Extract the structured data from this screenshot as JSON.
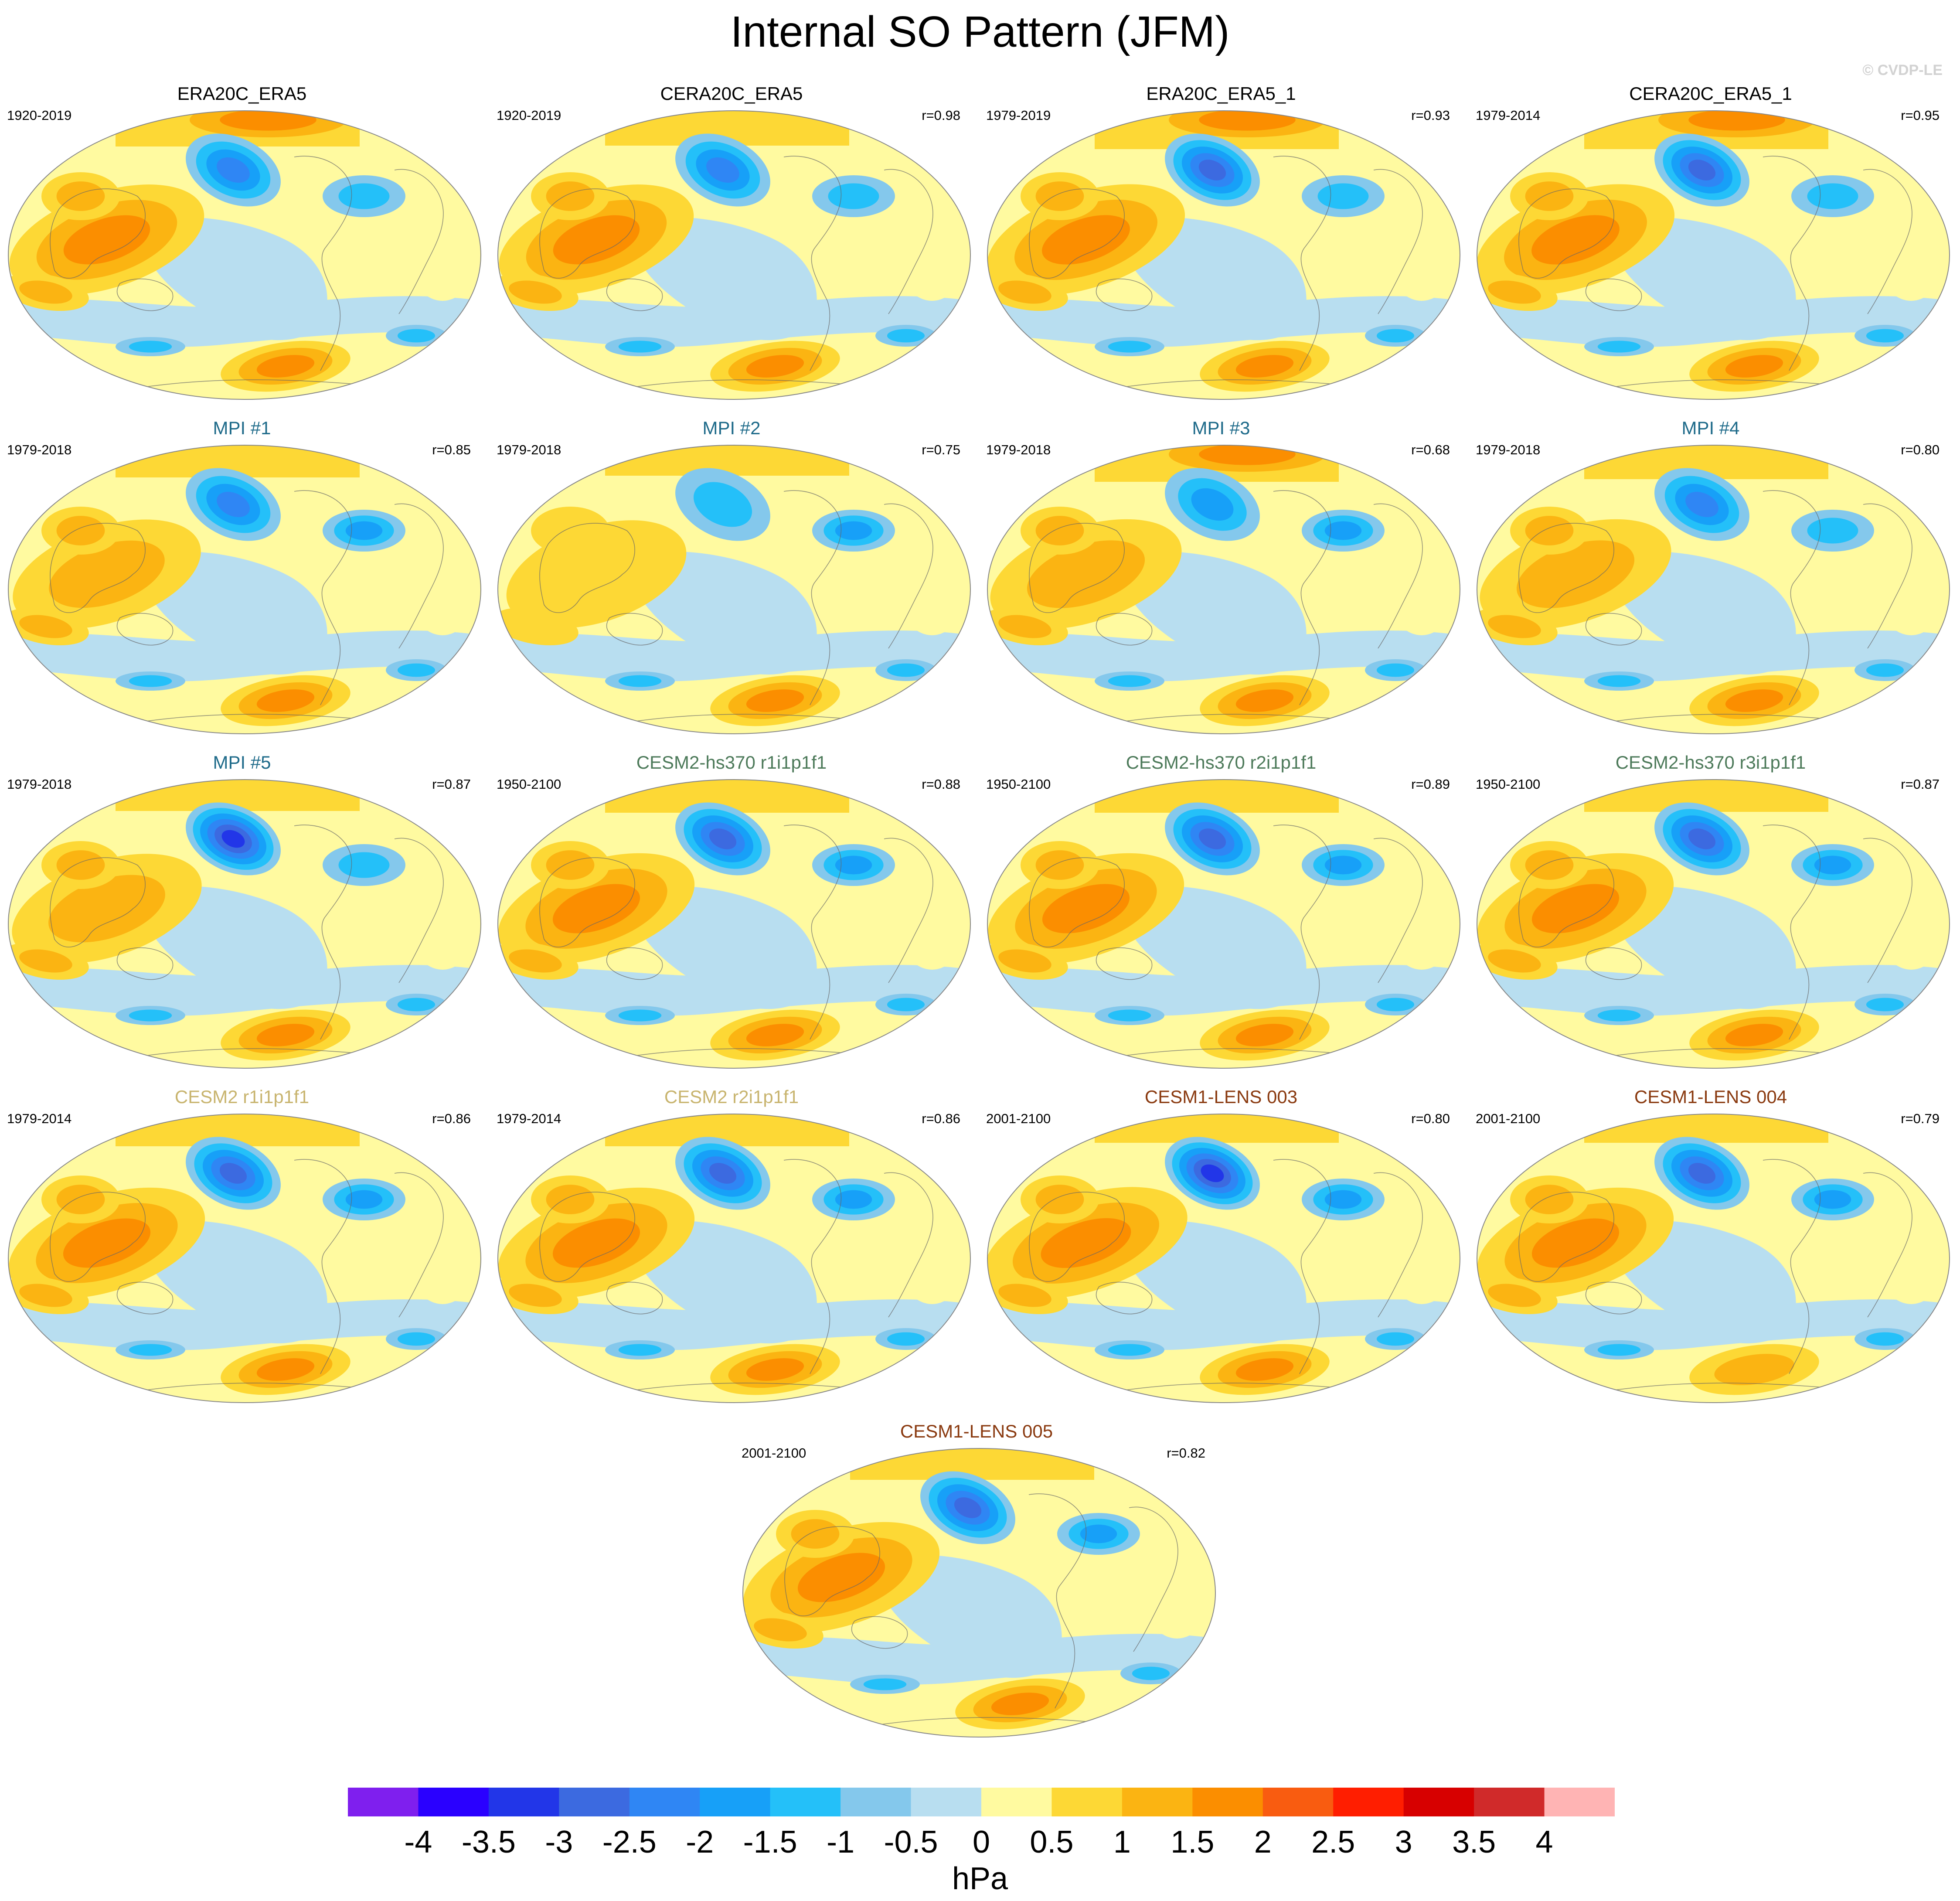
{
  "title": "Internal SO Pattern (JFM)",
  "credit": "© CVDP-LE",
  "panels": [
    {
      "title": "ERA20C_ERA5",
      "period": "1920-2019",
      "r": "",
      "title_color": "#000000",
      "pattern": [
        0.3,
        0.2,
        0.55,
        0.3,
        0.65
      ]
    },
    {
      "title": "CERA20C_ERA5",
      "period": "1920-2019",
      "r": "r=0.98",
      "title_color": "#000000",
      "pattern": [
        0.3,
        0.2,
        0.55,
        0.25,
        0.6
      ]
    },
    {
      "title": "ERA20C_ERA5_1",
      "period": "1979-2019",
      "r": "r=0.93",
      "title_color": "#000000",
      "pattern": [
        0.45,
        0.2,
        0.65,
        0.35,
        0.8
      ]
    },
    {
      "title": "CERA20C_ERA5_1",
      "period": "1979-2014",
      "r": "r=0.95",
      "title_color": "#000000",
      "pattern": [
        0.45,
        0.2,
        0.65,
        0.35,
        0.8
      ]
    },
    {
      "title": "MPI #1",
      "period": "1979-2018",
      "r": "r=0.85",
      "title_color": "#1f6b8a",
      "pattern": [
        0.4,
        0.55,
        0.35,
        0.4,
        0.45
      ]
    },
    {
      "title": "MPI #2",
      "period": "1979-2018",
      "r": "r=0.75",
      "title_color": "#1f6b8a",
      "pattern": [
        0.05,
        0.55,
        0.1,
        0.4,
        0.35
      ]
    },
    {
      "title": "MPI #3",
      "period": "1979-2018",
      "r": "r=0.68",
      "title_color": "#1f6b8a",
      "pattern": [
        0.2,
        0.6,
        0.45,
        0.4,
        0.7
      ]
    },
    {
      "title": "MPI #4",
      "period": "1979-2018",
      "r": "r=0.80",
      "title_color": "#1f6b8a",
      "pattern": [
        0.3,
        0.25,
        0.45,
        0.35,
        0.55
      ]
    },
    {
      "title": "MPI #5",
      "period": "1979-2018",
      "r": "r=0.87",
      "title_color": "#1f6b8a",
      "pattern": [
        0.6,
        0.2,
        0.4,
        0.25,
        0.4
      ]
    },
    {
      "title": "CESM2-hs370 r1i1p1f1",
      "period": "1950-2100",
      "r": "r=0.88",
      "title_color": "#4d7a5a",
      "pattern": [
        0.45,
        0.45,
        0.6,
        0.35,
        0.5
      ]
    },
    {
      "title": "CESM2-hs370 r2i1p1f1",
      "period": "1950-2100",
      "r": "r=0.89",
      "title_color": "#4d7a5a",
      "pattern": [
        0.45,
        0.45,
        0.6,
        0.35,
        0.5
      ]
    },
    {
      "title": "CESM2-hs370 r3i1p1f1",
      "period": "1950-2100",
      "r": "r=0.87",
      "title_color": "#4d7a5a",
      "pattern": [
        0.5,
        0.45,
        0.6,
        0.35,
        0.45
      ]
    },
    {
      "title": "CESM2 r1i1p1f1",
      "period": "1979-2014",
      "r": "r=0.86",
      "title_color": "#c8b46e",
      "pattern": [
        0.45,
        0.4,
        0.6,
        0.25,
        0.45
      ]
    },
    {
      "title": "CESM2 r2i1p1f1",
      "period": "1979-2014",
      "r": "r=0.86",
      "title_color": "#c8b46e",
      "pattern": [
        0.45,
        0.4,
        0.6,
        0.25,
        0.45
      ]
    },
    {
      "title": "CESM1-LENS 003",
      "period": "2001-2100",
      "r": "r=0.80",
      "title_color": "#8a3a10",
      "pattern": [
        0.65,
        0.45,
        0.8,
        0.25,
        0.25
      ]
    },
    {
      "title": "CESM1-LENS 004",
      "period": "2001-2100",
      "r": "r=0.79",
      "title_color": "#8a3a10",
      "pattern": [
        0.55,
        0.45,
        0.6,
        0.2,
        0.25
      ]
    },
    {
      "title": "CESM1-LENS 005",
      "period": "2001-2100",
      "r": "r=0.82",
      "title_color": "#8a3a10",
      "pattern": [
        0.45,
        0.4,
        0.6,
        0.25,
        0.4
      ]
    }
  ],
  "colorbar": {
    "colors": [
      "#7f1fee",
      "#2a00ff",
      "#2236e8",
      "#3c6ae0",
      "#2f86f4",
      "#17a0f8",
      "#24c0f9",
      "#84c8ec",
      "#b8def0",
      "#fffaa0",
      "#fdd835",
      "#fbb412",
      "#fb8e00",
      "#f95c10",
      "#ff1e00",
      "#d70000",
      "#d02a2a",
      "#ffb4b4"
    ],
    "labels": [
      "-4",
      "-3.5",
      "-3",
      "-2.5",
      "-2",
      "-1.5",
      "-1",
      "-0.5",
      "0",
      "0.5",
      "1",
      "1.5",
      "2",
      "2.5",
      "3",
      "3.5",
      "4"
    ],
    "unit": "hPa"
  }
}
